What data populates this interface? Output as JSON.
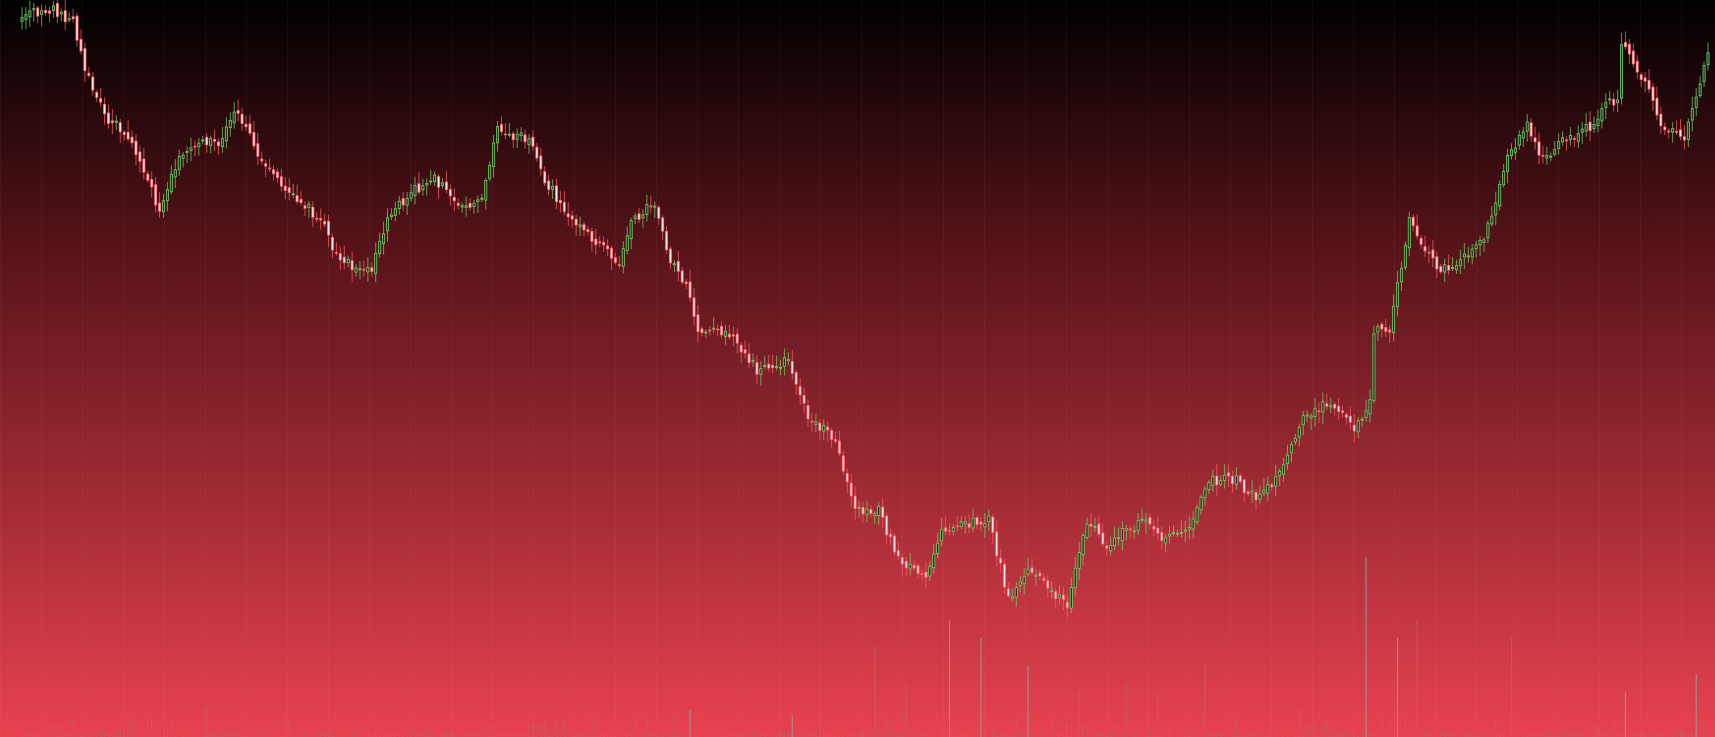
{
  "chart_data": {
    "type": "candlestick",
    "title": "",
    "xlabel": "",
    "ylabel": "",
    "bar_count": 430,
    "ylim": [
      0,
      737
    ],
    "anchors": [
      {
        "i": 0,
        "y": 15
      },
      {
        "i": 8,
        "y": 10
      },
      {
        "i": 13,
        "y": 22
      },
      {
        "i": 16,
        "y": 70
      },
      {
        "i": 21,
        "y": 115
      },
      {
        "i": 28,
        "y": 140
      },
      {
        "i": 31,
        "y": 170
      },
      {
        "i": 35,
        "y": 210
      },
      {
        "i": 39,
        "y": 165
      },
      {
        "i": 45,
        "y": 140
      },
      {
        "i": 50,
        "y": 145
      },
      {
        "i": 55,
        "y": 110
      },
      {
        "i": 61,
        "y": 165
      },
      {
        "i": 68,
        "y": 190
      },
      {
        "i": 76,
        "y": 220
      },
      {
        "i": 81,
        "y": 262
      },
      {
        "i": 89,
        "y": 270
      },
      {
        "i": 93,
        "y": 215
      },
      {
        "i": 100,
        "y": 190
      },
      {
        "i": 105,
        "y": 180
      },
      {
        "i": 112,
        "y": 205
      },
      {
        "i": 117,
        "y": 200
      },
      {
        "i": 121,
        "y": 130
      },
      {
        "i": 129,
        "y": 140
      },
      {
        "i": 133,
        "y": 180
      },
      {
        "i": 141,
        "y": 225
      },
      {
        "i": 147,
        "y": 245
      },
      {
        "i": 152,
        "y": 265
      },
      {
        "i": 155,
        "y": 225
      },
      {
        "i": 158,
        "y": 210
      },
      {
        "i": 161,
        "y": 205
      },
      {
        "i": 165,
        "y": 260
      },
      {
        "i": 169,
        "y": 285
      },
      {
        "i": 172,
        "y": 330
      },
      {
        "i": 179,
        "y": 330
      },
      {
        "i": 187,
        "y": 370
      },
      {
        "i": 195,
        "y": 360
      },
      {
        "i": 200,
        "y": 415
      },
      {
        "i": 207,
        "y": 440
      },
      {
        "i": 212,
        "y": 510
      },
      {
        "i": 218,
        "y": 510
      },
      {
        "i": 223,
        "y": 560
      },
      {
        "i": 230,
        "y": 580
      },
      {
        "i": 234,
        "y": 530
      },
      {
        "i": 240,
        "y": 525
      },
      {
        "i": 246,
        "y": 520
      },
      {
        "i": 251,
        "y": 600
      },
      {
        "i": 256,
        "y": 570
      },
      {
        "i": 262,
        "y": 590
      },
      {
        "i": 266,
        "y": 605
      },
      {
        "i": 271,
        "y": 520
      },
      {
        "i": 276,
        "y": 545
      },
      {
        "i": 281,
        "y": 530
      },
      {
        "i": 286,
        "y": 520
      },
      {
        "i": 291,
        "y": 540
      },
      {
        "i": 297,
        "y": 530
      },
      {
        "i": 302,
        "y": 480
      },
      {
        "i": 309,
        "y": 480
      },
      {
        "i": 314,
        "y": 500
      },
      {
        "i": 320,
        "y": 475
      },
      {
        "i": 326,
        "y": 415
      },
      {
        "i": 332,
        "y": 405
      },
      {
        "i": 336,
        "y": 415
      },
      {
        "i": 339,
        "y": 430
      },
      {
        "i": 343,
        "y": 400
      },
      {
        "i": 344,
        "y": 330
      },
      {
        "i": 348,
        "y": 330
      },
      {
        "i": 353,
        "y": 220
      },
      {
        "i": 357,
        "y": 250
      },
      {
        "i": 361,
        "y": 270
      },
      {
        "i": 366,
        "y": 260
      },
      {
        "i": 369,
        "y": 250
      },
      {
        "i": 372,
        "y": 235
      },
      {
        "i": 375,
        "y": 200
      },
      {
        "i": 378,
        "y": 155
      },
      {
        "i": 383,
        "y": 125
      },
      {
        "i": 387,
        "y": 160
      },
      {
        "i": 392,
        "y": 140
      },
      {
        "i": 396,
        "y": 135
      },
      {
        "i": 401,
        "y": 120
      },
      {
        "i": 404,
        "y": 100
      },
      {
        "i": 406,
        "y": 105
      },
      {
        "i": 407,
        "y": 45
      },
      {
        "i": 410,
        "y": 60
      },
      {
        "i": 414,
        "y": 90
      },
      {
        "i": 417,
        "y": 125
      },
      {
        "i": 423,
        "y": 135
      },
      {
        "i": 426,
        "y": 100
      },
      {
        "i": 429,
        "y": 55
      }
    ],
    "volume_spikes": [
      {
        "i": 47,
        "v": 0.17
      },
      {
        "i": 170,
        "v": 0.15
      },
      {
        "i": 196,
        "v": 0.12
      },
      {
        "i": 217,
        "v": 0.5
      },
      {
        "i": 225,
        "v": 0.3
      },
      {
        "i": 236,
        "v": 0.65
      },
      {
        "i": 244,
        "v": 0.55
      },
      {
        "i": 256,
        "v": 0.4
      },
      {
        "i": 269,
        "v": 0.25
      },
      {
        "i": 281,
        "v": 0.3
      },
      {
        "i": 289,
        "v": 0.25
      },
      {
        "i": 301,
        "v": 0.4
      },
      {
        "i": 325,
        "v": 0.15
      },
      {
        "i": 342,
        "v": 1.0
      },
      {
        "i": 350,
        "v": 0.55
      },
      {
        "i": 355,
        "v": 0.65
      },
      {
        "i": 379,
        "v": 0.55
      },
      {
        "i": 408,
        "v": 0.25
      },
      {
        "i": 426,
        "v": 0.35
      }
    ],
    "colors": {
      "bg_top": "#000000",
      "bg_bottom": "#e8424f",
      "up": "#6fcf6a",
      "down": "#ff5a66",
      "wick": "#c9c9c9",
      "volume": "#9a9a9a",
      "grid": "#ffffff"
    }
  }
}
